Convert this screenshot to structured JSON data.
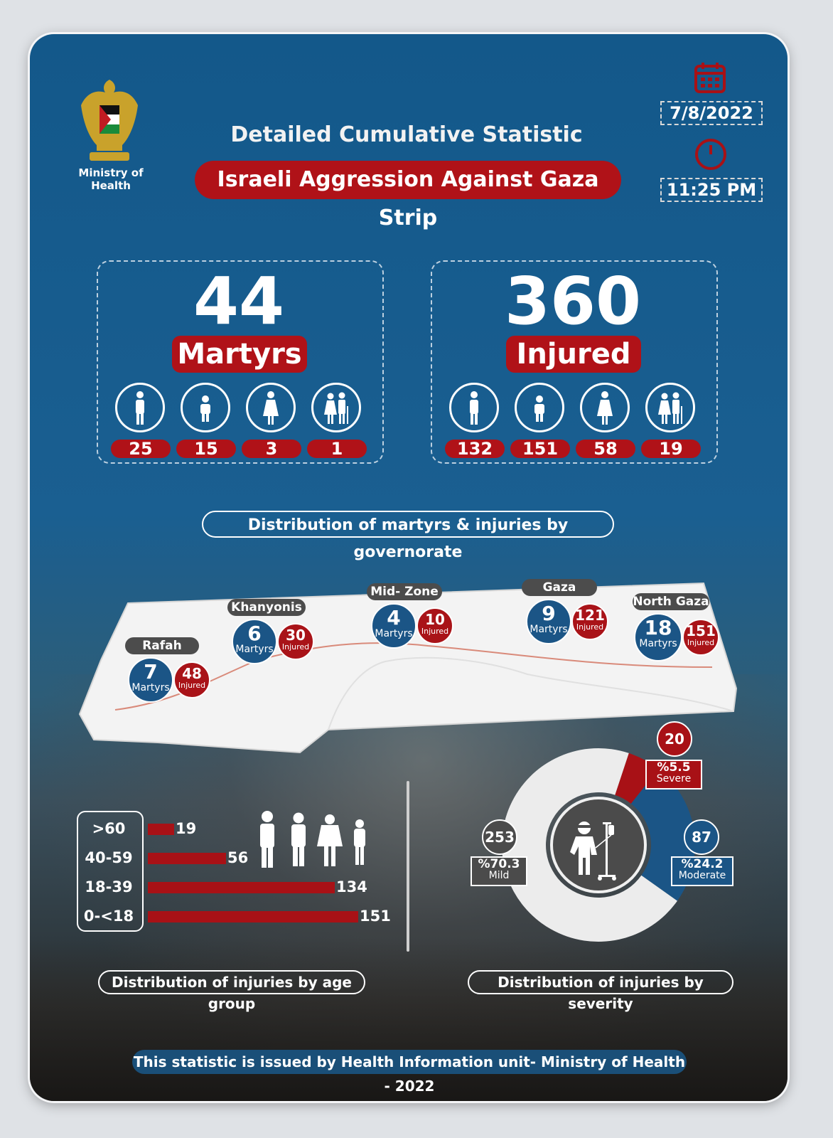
{
  "header": {
    "ministry": "Ministry of Health",
    "title": "Detailed Cumulative Statistic",
    "subtitle": "Israeli Aggression Against Gaza Strip",
    "date": "7/8/2022",
    "time": "11:25 PM"
  },
  "martyrs": {
    "total": "44",
    "label": "Martyrs",
    "breakdown": [
      {
        "icon": "man-icon",
        "value": "25"
      },
      {
        "icon": "child-icon",
        "value": "15"
      },
      {
        "icon": "woman-icon",
        "value": "3"
      },
      {
        "icon": "elderly-couple-icon",
        "value": "1"
      }
    ]
  },
  "injured": {
    "total": "360",
    "label": "Injured",
    "breakdown": [
      {
        "icon": "man-icon",
        "value": "132"
      },
      {
        "icon": "child-icon",
        "value": "151"
      },
      {
        "icon": "woman-icon",
        "value": "58"
      },
      {
        "icon": "elderly-couple-icon",
        "value": "19"
      }
    ]
  },
  "governorate_section_title": "Distribution of martyrs & injuries by governorate",
  "governorates": [
    {
      "name": "Rafah",
      "martyrs": "7",
      "martyrs_label": "Martyrs",
      "injured": "48",
      "injured_label": "Injured"
    },
    {
      "name": "Khanyonis",
      "martyrs": "6",
      "martyrs_label": "Martyrs",
      "injured": "30",
      "injured_label": "Injured"
    },
    {
      "name": "Mid- Zone",
      "martyrs": "4",
      "martyrs_label": "Martyrs",
      "injured": "10",
      "injured_label": "Injured"
    },
    {
      "name": "Gaza",
      "martyrs": "9",
      "martyrs_label": "Martyrs",
      "injured": "121",
      "injured_label": "Injured"
    },
    {
      "name": "North Gaza",
      "martyrs": "18",
      "martyrs_label": "Martyrs",
      "injured": "151",
      "injured_label": "Injured"
    }
  ],
  "chart_data": [
    {
      "type": "bar",
      "title": "Distribution of injuries by age group",
      "categories": [
        ">60",
        "40-59",
        "18-39",
        "0-<18"
      ],
      "values": [
        19,
        56,
        134,
        151
      ],
      "orientation": "horizontal",
      "color": "#a81116"
    },
    {
      "type": "pie",
      "title": "Distribution of injuries by severity",
      "categories": [
        "Severe",
        "Moderate",
        "Mild"
      ],
      "values": [
        20,
        87,
        253
      ],
      "percent_labels": [
        "%5.5",
        "%24.2",
        "%70.3"
      ],
      "colors": [
        "#a81116",
        "#1b5586",
        "#ececec"
      ],
      "donut": true
    }
  ],
  "footer": "This statistic is issued by Health Information unit- Ministry of Health - 2022"
}
